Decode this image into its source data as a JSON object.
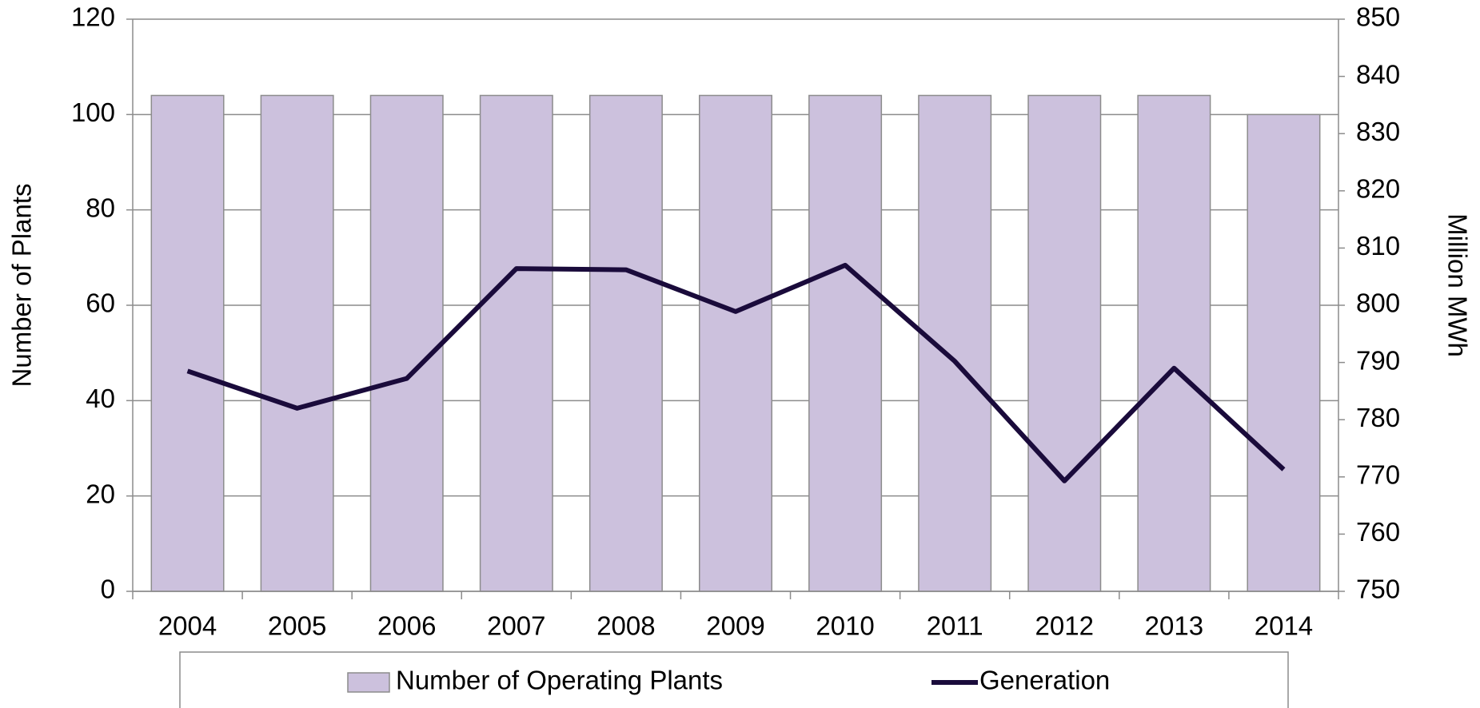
{
  "chart_data": {
    "type": "bar-line",
    "categories": [
      "2004",
      "2005",
      "2006",
      "2007",
      "2008",
      "2009",
      "2010",
      "2011",
      "2012",
      "2013",
      "2014"
    ],
    "series": [
      {
        "name": "Number of Operating Plants",
        "type": "bar",
        "color": "#ccc1dd",
        "values": [
          104,
          104,
          104,
          104,
          104,
          104,
          104,
          104,
          104,
          104,
          100
        ]
      },
      {
        "name": "Generation",
        "type": "line",
        "axis": "y2",
        "color": "#1a0b3b",
        "values": [
          788.5,
          782.0,
          787.2,
          806.4,
          806.2,
          798.9,
          807.0,
          790.2,
          769.3,
          789.0,
          771.3
        ]
      }
    ],
    "ylabel": "Number of Plants",
    "y2label": "Million MWh",
    "ylim": [
      0,
      120
    ],
    "yticks": [
      0,
      20,
      40,
      60,
      80,
      100,
      120
    ],
    "y2lim": [
      750,
      850
    ],
    "y2ticks": [
      750,
      760,
      770,
      780,
      790,
      800,
      810,
      820,
      830,
      840,
      850
    ],
    "grid": true,
    "legend": "bottom"
  }
}
